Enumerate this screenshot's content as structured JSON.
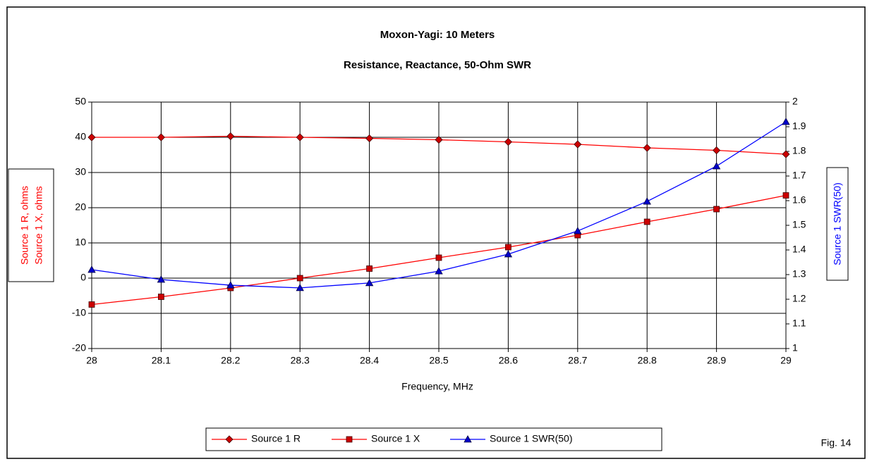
{
  "chart_data": {
    "type": "line",
    "title": "Moxon-Yagi: 10 Meters",
    "subtitle": "Resistance, Reactance, 50-Ohm SWR",
    "xlabel": "Frequency, MHz",
    "ylabel": [
      "Source 1 R, ohms",
      "Source 1 X, ohms"
    ],
    "y2label": "Source 1 SWR(50)",
    "annotation": "Fig. 14",
    "x": [
      28,
      28.1,
      28.2,
      28.3,
      28.4,
      28.5,
      28.6,
      28.7,
      28.8,
      28.9,
      29
    ],
    "xlim": [
      28,
      29
    ],
    "xticks": [
      28,
      28.1,
      28.2,
      28.3,
      28.4,
      28.5,
      28.6,
      28.7,
      28.8,
      28.9,
      29
    ],
    "ylim": [
      -20,
      50
    ],
    "yticks": [
      -20,
      -10,
      0,
      10,
      20,
      30,
      40,
      50
    ],
    "y2lim": [
      1,
      2
    ],
    "y2ticks": [
      1,
      1.1,
      1.2,
      1.3,
      1.4,
      1.5,
      1.6,
      1.7,
      1.8,
      1.9,
      2
    ],
    "grid": true,
    "legend": "bottom",
    "series": [
      {
        "name": "Source 1 R",
        "color": "#ff0000",
        "marker": "diamond",
        "marker_color": "#cc0000",
        "values": [
          40,
          40,
          40.3,
          40,
          39.7,
          39.3,
          38.7,
          38,
          37,
          36.3,
          35.2
        ]
      },
      {
        "name": "Source 1 X",
        "color": "#ff0000",
        "marker": "square",
        "marker_color": "#cc0000",
        "values": [
          -7.5,
          -5.3,
          -2.8,
          0,
          2.7,
          5.8,
          8.8,
          12.2,
          16,
          19.6,
          23.5
        ]
      },
      {
        "name": "Source 1 SWR(50)",
        "color": "#0000ff",
        "marker": "triangle",
        "marker_color": "#0000cc",
        "axis": "y2",
        "values": [
          1.32,
          1.28,
          1.257,
          1.246,
          1.266,
          1.314,
          1.383,
          1.477,
          1.597,
          1.74,
          1.92
        ]
      }
    ]
  }
}
